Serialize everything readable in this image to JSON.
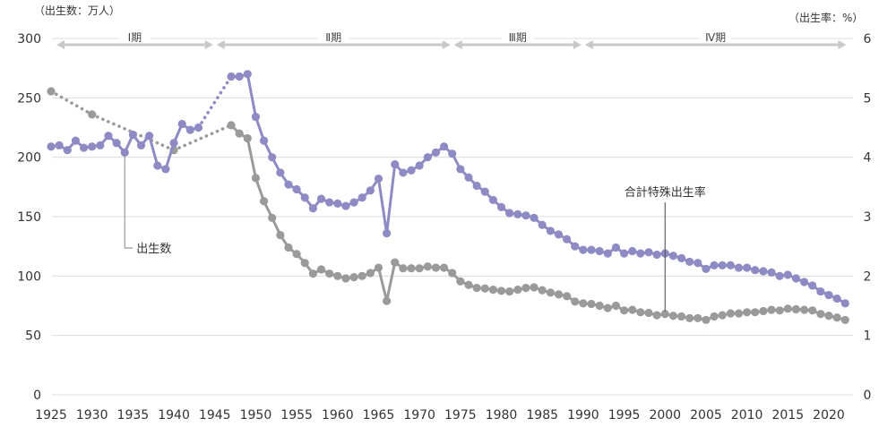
{
  "chart_data": {
    "type": "line",
    "title": "",
    "left_axis_label": "（出生数：万人）",
    "right_axis_label": "（出生率：%）",
    "xlabel": "",
    "x_ticks": [
      1925,
      1930,
      1935,
      1940,
      1945,
      1950,
      1955,
      1960,
      1965,
      1970,
      1975,
      1980,
      1985,
      1990,
      1995,
      2000,
      2005,
      2010,
      2015,
      2020
    ],
    "y_left_ticks": [
      0,
      50,
      100,
      150,
      200,
      250,
      300
    ],
    "y_right_ticks": [
      0,
      1,
      2,
      3,
      4,
      5,
      6
    ],
    "ylim_left": [
      0,
      300
    ],
    "ylim_right": [
      0,
      6
    ],
    "xlim": [
      1925,
      2023
    ],
    "grid": true,
    "periods": [
      {
        "label": "Ⅰ期",
        "start": 1925,
        "end": 1945
      },
      {
        "label": "Ⅱ期",
        "start": 1945,
        "end": 1974
      },
      {
        "label": "Ⅲ期",
        "start": 1974,
        "end": 1990
      },
      {
        "label": "Ⅳ期",
        "start": 1990,
        "end": 2023
      }
    ],
    "annotations": [
      {
        "text": "出生数",
        "series": "births"
      },
      {
        "text": "合計特殊出生率",
        "series": "tfr"
      }
    ],
    "series": [
      {
        "name": "出生数",
        "id": "births",
        "axis": "left",
        "color": "#8e8bc4",
        "x": [
          1925,
          1926,
          1927,
          1928,
          1929,
          1930,
          1931,
          1932,
          1933,
          1934,
          1935,
          1936,
          1937,
          1938,
          1939,
          1940,
          1941,
          1942,
          1943,
          1947,
          1948,
          1949,
          1950,
          1951,
          1952,
          1953,
          1954,
          1955,
          1956,
          1957,
          1958,
          1959,
          1960,
          1961,
          1962,
          1963,
          1964,
          1965,
          1966,
          1967,
          1968,
          1969,
          1970,
          1971,
          1972,
          1973,
          1974,
          1975,
          1976,
          1977,
          1978,
          1979,
          1980,
          1981,
          1982,
          1983,
          1984,
          1985,
          1986,
          1987,
          1988,
          1989,
          1990,
          1991,
          1992,
          1993,
          1994,
          1995,
          1996,
          1997,
          1998,
          1999,
          2000,
          2001,
          2002,
          2003,
          2004,
          2005,
          2006,
          2007,
          2008,
          2009,
          2010,
          2011,
          2012,
          2013,
          2014,
          2015,
          2016,
          2017,
          2018,
          2019,
          2020,
          2021,
          2022
        ],
        "values": [
          209,
          210,
          206,
          214,
          208,
          209,
          210,
          218,
          212,
          204,
          219,
          210,
          218,
          193,
          190,
          212,
          228,
          223,
          225,
          268,
          268,
          270,
          234,
          214,
          200,
          187,
          177,
          173,
          166,
          157,
          165,
          162,
          161,
          159,
          162,
          166,
          172,
          182,
          136,
          194,
          187,
          189,
          193,
          200,
          204,
          209,
          203,
          190,
          183,
          176,
          171,
          164,
          158,
          153,
          152,
          151,
          149,
          143,
          138,
          135,
          131,
          125,
          122,
          122,
          121,
          119,
          124,
          119,
          121,
          119,
          120,
          118,
          119,
          117,
          115,
          112,
          111,
          106,
          109,
          109,
          109,
          107,
          107,
          105,
          104,
          103,
          100,
          101,
          98,
          95,
          92,
          87,
          84,
          81,
          77
        ],
        "dotted_segments": [
          [
            1925,
            1925
          ],
          [
            1943,
            1947
          ]
        ]
      },
      {
        "name": "合計特殊出生率",
        "id": "tfr",
        "axis": "right",
        "color": "#9a9a9a",
        "x": [
          1925,
          1930,
          1940,
          1947,
          1948,
          1949,
          1950,
          1951,
          1952,
          1953,
          1954,
          1955,
          1956,
          1957,
          1958,
          1959,
          1960,
          1961,
          1962,
          1963,
          1964,
          1965,
          1966,
          1967,
          1968,
          1969,
          1970,
          1971,
          1972,
          1973,
          1974,
          1975,
          1976,
          1977,
          1978,
          1979,
          1980,
          1981,
          1982,
          1983,
          1984,
          1985,
          1986,
          1987,
          1988,
          1989,
          1990,
          1991,
          1992,
          1993,
          1994,
          1995,
          1996,
          1997,
          1998,
          1999,
          2000,
          2001,
          2002,
          2003,
          2004,
          2005,
          2006,
          2007,
          2008,
          2009,
          2010,
          2011,
          2012,
          2013,
          2014,
          2015,
          2016,
          2017,
          2018,
          2019,
          2020,
          2021,
          2022
        ],
        "values": [
          5.11,
          4.72,
          4.12,
          4.54,
          4.4,
          4.32,
          3.65,
          3.26,
          2.98,
          2.69,
          2.48,
          2.37,
          2.22,
          2.04,
          2.11,
          2.04,
          2.0,
          1.96,
          1.98,
          2.0,
          2.05,
          2.14,
          1.58,
          2.23,
          2.13,
          2.13,
          2.13,
          2.16,
          2.14,
          2.14,
          2.05,
          1.91,
          1.85,
          1.8,
          1.79,
          1.77,
          1.75,
          1.74,
          1.77,
          1.8,
          1.81,
          1.76,
          1.72,
          1.69,
          1.66,
          1.57,
          1.54,
          1.53,
          1.5,
          1.46,
          1.5,
          1.42,
          1.43,
          1.39,
          1.38,
          1.34,
          1.36,
          1.33,
          1.32,
          1.29,
          1.29,
          1.26,
          1.32,
          1.34,
          1.37,
          1.37,
          1.39,
          1.39,
          1.41,
          1.43,
          1.42,
          1.45,
          1.44,
          1.43,
          1.42,
          1.36,
          1.33,
          1.3,
          1.26
        ],
        "dotted_segments": [
          [
            1925,
            1947
          ]
        ]
      }
    ]
  }
}
